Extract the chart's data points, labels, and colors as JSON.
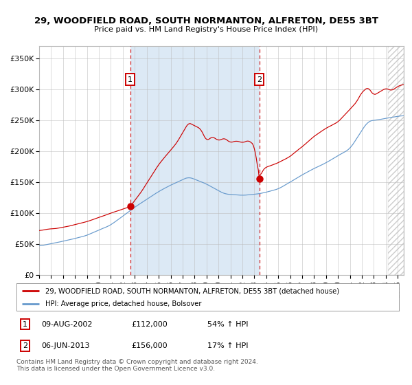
{
  "title": "29, WOODFIELD ROAD, SOUTH NORMANTON, ALFRETON, DE55 3BT",
  "subtitle": "Price paid vs. HM Land Registry's House Price Index (HPI)",
  "legend_line1": "29, WOODFIELD ROAD, SOUTH NORMANTON, ALFRETON, DE55 3BT (detached house)",
  "legend_line2": "HPI: Average price, detached house, Bolsover",
  "annotation1_label": "1",
  "annotation1_date": "09-AUG-2002",
  "annotation1_price": "£112,000",
  "annotation1_hpi": "54% ↑ HPI",
  "annotation2_label": "2",
  "annotation2_date": "06-JUN-2013",
  "annotation2_price": "£156,000",
  "annotation2_hpi": "17% ↑ HPI",
  "sale1_x": 2002.614,
  "sale1_y": 112000,
  "sale2_x": 2013.42,
  "sale2_y": 156000,
  "vline1_x": 2002.614,
  "vline2_x": 2013.42,
  "shade_x1": 2002.614,
  "shade_x2": 2013.42,
  "xmin": 1995.0,
  "xmax": 2025.5,
  "ymin": 0,
  "ymax": 370000,
  "yticks": [
    0,
    50000,
    100000,
    150000,
    200000,
    250000,
    300000,
    350000
  ],
  "ytick_labels": [
    "£0",
    "£50K",
    "£100K",
    "£150K",
    "£200K",
    "£250K",
    "£300K",
    "£350K"
  ],
  "red_color": "#cc0000",
  "blue_color": "#6699cc",
  "shade_color": "#dce9f5",
  "grid_color": "#bbbbbb",
  "background_color": "#ffffff",
  "hatch_color": "#cccccc",
  "footnote": "Contains HM Land Registry data © Crown copyright and database right 2024.\nThis data is licensed under the Open Government Licence v3.0."
}
